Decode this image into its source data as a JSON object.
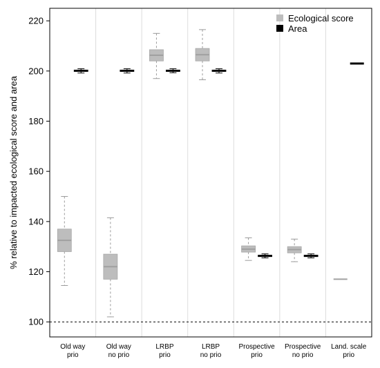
{
  "chart_data": {
    "type": "box",
    "ylabel": "% relative to impacted ecological score and area",
    "ylim": [
      94,
      225
    ],
    "yticks": [
      100,
      120,
      140,
      160,
      180,
      200,
      220
    ],
    "reference_line": 100,
    "categories": [
      [
        "Old way",
        "prio"
      ],
      [
        "Old way",
        "no prio"
      ],
      [
        "LRBP",
        "prio"
      ],
      [
        "LRBP",
        "no prio"
      ],
      [
        "Prospective",
        "prio"
      ],
      [
        "Prospective",
        "no prio"
      ],
      [
        "Land. scale",
        "prio"
      ]
    ],
    "legend": {
      "position": "top-right",
      "entries": [
        {
          "label": "Ecological score",
          "color": "#bdbdbd"
        },
        {
          "label": "Area",
          "color": "#000000"
        }
      ]
    },
    "series": [
      {
        "name": "Ecological score",
        "color": "#bdbdbd",
        "median_color": "#a0a0a0",
        "boxes": [
          {
            "whisker_low": 114.5,
            "q1": 128.0,
            "median": 132.5,
            "q3": 137.0,
            "whisker_high": 150.0
          },
          {
            "whisker_low": 102.0,
            "q1": 117.0,
            "median": 122.0,
            "q3": 127.0,
            "whisker_high": 141.5
          },
          {
            "whisker_low": 197.0,
            "q1": 204.0,
            "median": 206.3,
            "q3": 208.5,
            "whisker_high": 215.0
          },
          {
            "whisker_low": 196.5,
            "q1": 204.0,
            "median": 206.5,
            "q3": 209.0,
            "whisker_high": 216.5
          },
          {
            "whisker_low": 124.5,
            "q1": 127.8,
            "median": 129.0,
            "q3": 130.3,
            "whisker_high": 133.5
          },
          {
            "whisker_low": 124.0,
            "q1": 127.5,
            "median": 128.8,
            "q3": 130.0,
            "whisker_high": 133.0
          },
          {
            "whisker_low": 117.0,
            "q1": 117.0,
            "median": 117.0,
            "q3": 117.0,
            "whisker_high": 117.0
          }
        ]
      },
      {
        "name": "Area",
        "color": "#000000",
        "median_color": "#000000",
        "boxes": [
          {
            "whisker_low": 199.2,
            "q1": 199.8,
            "median": 200.1,
            "q3": 200.4,
            "whisker_high": 200.9
          },
          {
            "whisker_low": 199.2,
            "q1": 199.8,
            "median": 200.1,
            "q3": 200.4,
            "whisker_high": 200.9
          },
          {
            "whisker_low": 199.3,
            "q1": 199.8,
            "median": 200.1,
            "q3": 200.4,
            "whisker_high": 200.9
          },
          {
            "whisker_low": 199.2,
            "q1": 199.8,
            "median": 200.1,
            "q3": 200.4,
            "whisker_high": 200.9
          },
          {
            "whisker_low": 125.5,
            "q1": 126.0,
            "median": 126.3,
            "q3": 126.6,
            "whisker_high": 127.1
          },
          {
            "whisker_low": 125.5,
            "q1": 126.0,
            "median": 126.3,
            "q3": 126.6,
            "whisker_high": 127.1
          },
          {
            "whisker_low": 203.0,
            "q1": 203.0,
            "median": 203.0,
            "q3": 203.0,
            "whisker_high": 203.0
          }
        ]
      }
    ]
  }
}
